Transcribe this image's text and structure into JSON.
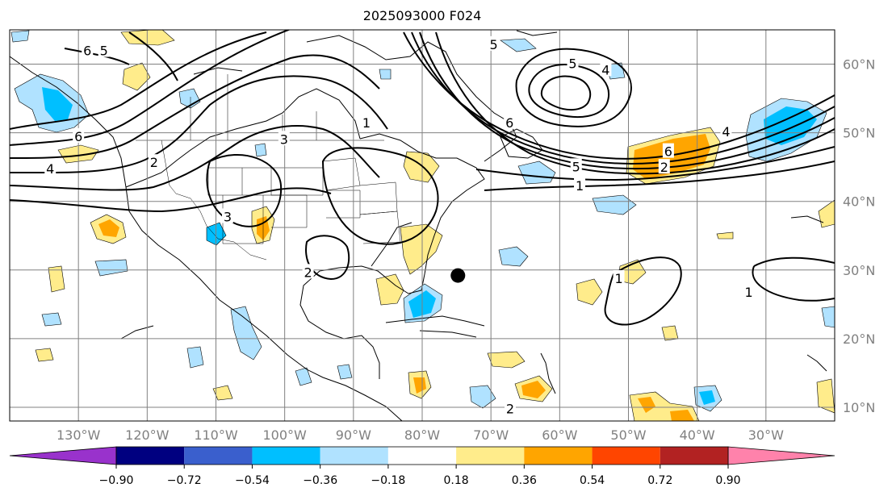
{
  "map": {
    "title": "2025093000 F024",
    "projection": "PlateCarree",
    "lon_range": [
      -140,
      -20
    ],
    "lat_range": [
      8,
      65
    ],
    "lat_labels": [
      {
        "value": 60,
        "text": "60°N"
      },
      {
        "value": 50,
        "text": "50°N"
      },
      {
        "value": 40,
        "text": "40°N"
      },
      {
        "value": 30,
        "text": "30°N"
      },
      {
        "value": 20,
        "text": "20°N"
      },
      {
        "value": 10,
        "text": "10°N"
      }
    ],
    "lon_labels": [
      {
        "value": -130,
        "text": "130°W"
      },
      {
        "value": -120,
        "text": "120°W"
      },
      {
        "value": -110,
        "text": "110°W"
      },
      {
        "value": -100,
        "text": "100°W"
      },
      {
        "value": -90,
        "text": "90°W"
      },
      {
        "value": -80,
        "text": "80°W"
      },
      {
        "value": -70,
        "text": "70°W"
      },
      {
        "value": -60,
        "text": "60°W"
      },
      {
        "value": -50,
        "text": "50°W"
      },
      {
        "value": -40,
        "text": "40°W"
      },
      {
        "value": -30,
        "text": "30°W"
      }
    ],
    "marker": {
      "lon": -74.8,
      "lat": 29.2,
      "color": "#000000"
    },
    "contour_labels": [
      {
        "text": "6",
        "lon": -128.7,
        "lat": 62
      },
      {
        "text": "5",
        "lon": -126.3,
        "lat": 62
      },
      {
        "text": "6",
        "lon": -130,
        "lat": 49.5
      },
      {
        "text": "4",
        "lon": -134.1,
        "lat": 44.8
      },
      {
        "text": "2",
        "lon": -119,
        "lat": 45.7
      },
      {
        "text": "3",
        "lon": -100.1,
        "lat": 49.1
      },
      {
        "text": "1",
        "lon": -88.1,
        "lat": 51.5
      },
      {
        "text": "3",
        "lon": -108.3,
        "lat": 37.8
      },
      {
        "text": "2",
        "lon": -96.6,
        "lat": 29.7
      },
      {
        "text": "5",
        "lon": -69.6,
        "lat": 62.9
      },
      {
        "text": "5",
        "lon": -58.1,
        "lat": 60.1
      },
      {
        "text": "4",
        "lon": -53.3,
        "lat": 59.2
      },
      {
        "text": "6",
        "lon": -67.3,
        "lat": 51.5
      },
      {
        "text": "5",
        "lon": -57.6,
        "lat": 45.1
      },
      {
        "text": "1",
        "lon": -57.1,
        "lat": 42.3
      },
      {
        "text": "6",
        "lon": -44.2,
        "lat": 47.3
      },
      {
        "text": "2",
        "lon": -44.8,
        "lat": 45
      },
      {
        "text": "4",
        "lon": -35.8,
        "lat": 50.2
      },
      {
        "text": "1",
        "lon": -51.4,
        "lat": 28.8
      },
      {
        "text": "1",
        "lon": -32.5,
        "lat": 26.8
      },
      {
        "text": "2",
        "lon": -67.2,
        "lat": 9.8
      }
    ]
  },
  "colorbar": {
    "under_color": "#9932CC",
    "over_color": "#FF82AB",
    "colors": [
      "#000080",
      "#3A5FCD",
      "#00BFFF",
      "#B0E2FF",
      "#FFFFFF",
      "#FFEC8B",
      "#FFA500",
      "#FF4500",
      "#B22222"
    ],
    "tick_labels": [
      "−0.90",
      "−0.72",
      "−0.54",
      "−0.36",
      "−0.18",
      "0.18",
      "0.36",
      "0.54",
      "0.72",
      "0.90"
    ]
  }
}
